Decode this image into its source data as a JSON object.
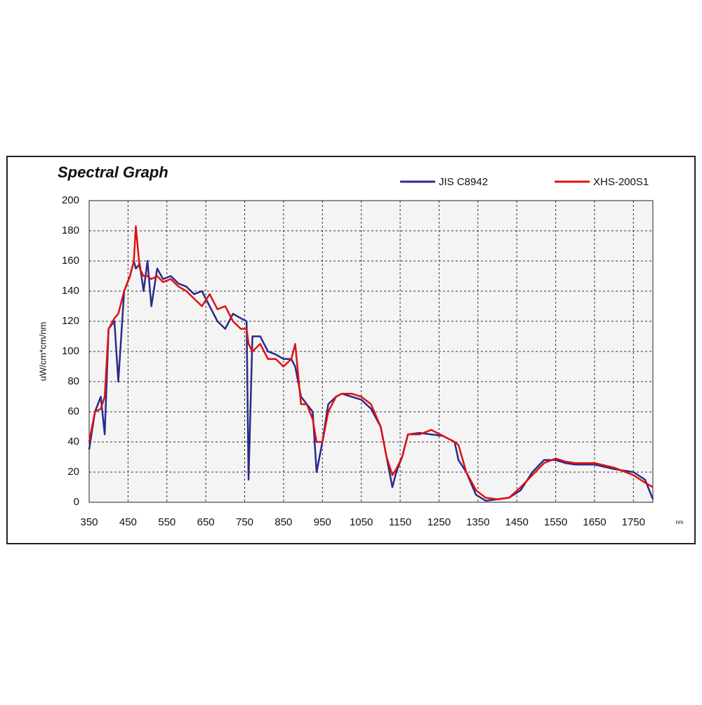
{
  "chart_data": {
    "type": "line",
    "title": "Spectral Graph",
    "y_label": "uW/cm*cm/nm",
    "x_label": "nm",
    "x": [
      350,
      365,
      380,
      390,
      400,
      415,
      425,
      440,
      455,
      465,
      470,
      480,
      490,
      500,
      510,
      525,
      540,
      560,
      580,
      600,
      620,
      640,
      660,
      680,
      700,
      720,
      740,
      755,
      760,
      770,
      790,
      810,
      830,
      850,
      870,
      880,
      895,
      910,
      925,
      935,
      950,
      965,
      985,
      1000,
      1025,
      1050,
      1075,
      1100,
      1115,
      1130,
      1140,
      1155,
      1170,
      1200,
      1230,
      1260,
      1290,
      1300,
      1320,
      1345,
      1370,
      1400,
      1430,
      1460,
      1490,
      1520,
      1550,
      1575,
      1600,
      1650,
      1700,
      1750,
      1780,
      1800
    ],
    "series": [
      {
        "name": "JIS C8942",
        "color": "#2a2a8c",
        "values": [
          35,
          60,
          70,
          45,
          115,
          120,
          80,
          140,
          150,
          160,
          155,
          158,
          140,
          160,
          130,
          155,
          148,
          150,
          145,
          143,
          138,
          140,
          130,
          120,
          115,
          125,
          122,
          120,
          15,
          110,
          110,
          100,
          98,
          95,
          95,
          90,
          70,
          65,
          60,
          20,
          40,
          65,
          70,
          72,
          70,
          68,
          62,
          50,
          30,
          10,
          20,
          30,
          45,
          46,
          45,
          44,
          40,
          28,
          20,
          5,
          1,
          2,
          3,
          8,
          20,
          28,
          28,
          26,
          25,
          25,
          22,
          20,
          15,
          2
        ]
      },
      {
        "name": "XHS-200S1",
        "color": "#e01010",
        "values": [
          40,
          60,
          62,
          70,
          115,
          122,
          125,
          140,
          150,
          160,
          183,
          155,
          150,
          150,
          148,
          150,
          146,
          148,
          143,
          140,
          135,
          130,
          138,
          128,
          130,
          120,
          115,
          115,
          105,
          100,
          105,
          95,
          95,
          90,
          95,
          105,
          65,
          65,
          55,
          40,
          40,
          60,
          70,
          72,
          72,
          70,
          65,
          50,
          30,
          18,
          22,
          30,
          45,
          45,
          48,
          44,
          40,
          38,
          20,
          8,
          3,
          2,
          3,
          10,
          18,
          26,
          29,
          27,
          26,
          26,
          23,
          18,
          13,
          10
        ]
      }
    ],
    "xlim": [
      350,
      1800
    ],
    "ylim": [
      0,
      200
    ],
    "xticks": [
      350,
      450,
      550,
      650,
      750,
      850,
      950,
      1050,
      1150,
      1250,
      1350,
      1450,
      1550,
      1650,
      1750
    ],
    "yticks": [
      0,
      20,
      40,
      60,
      80,
      100,
      120,
      140,
      160,
      180,
      200
    ],
    "grid": true
  }
}
